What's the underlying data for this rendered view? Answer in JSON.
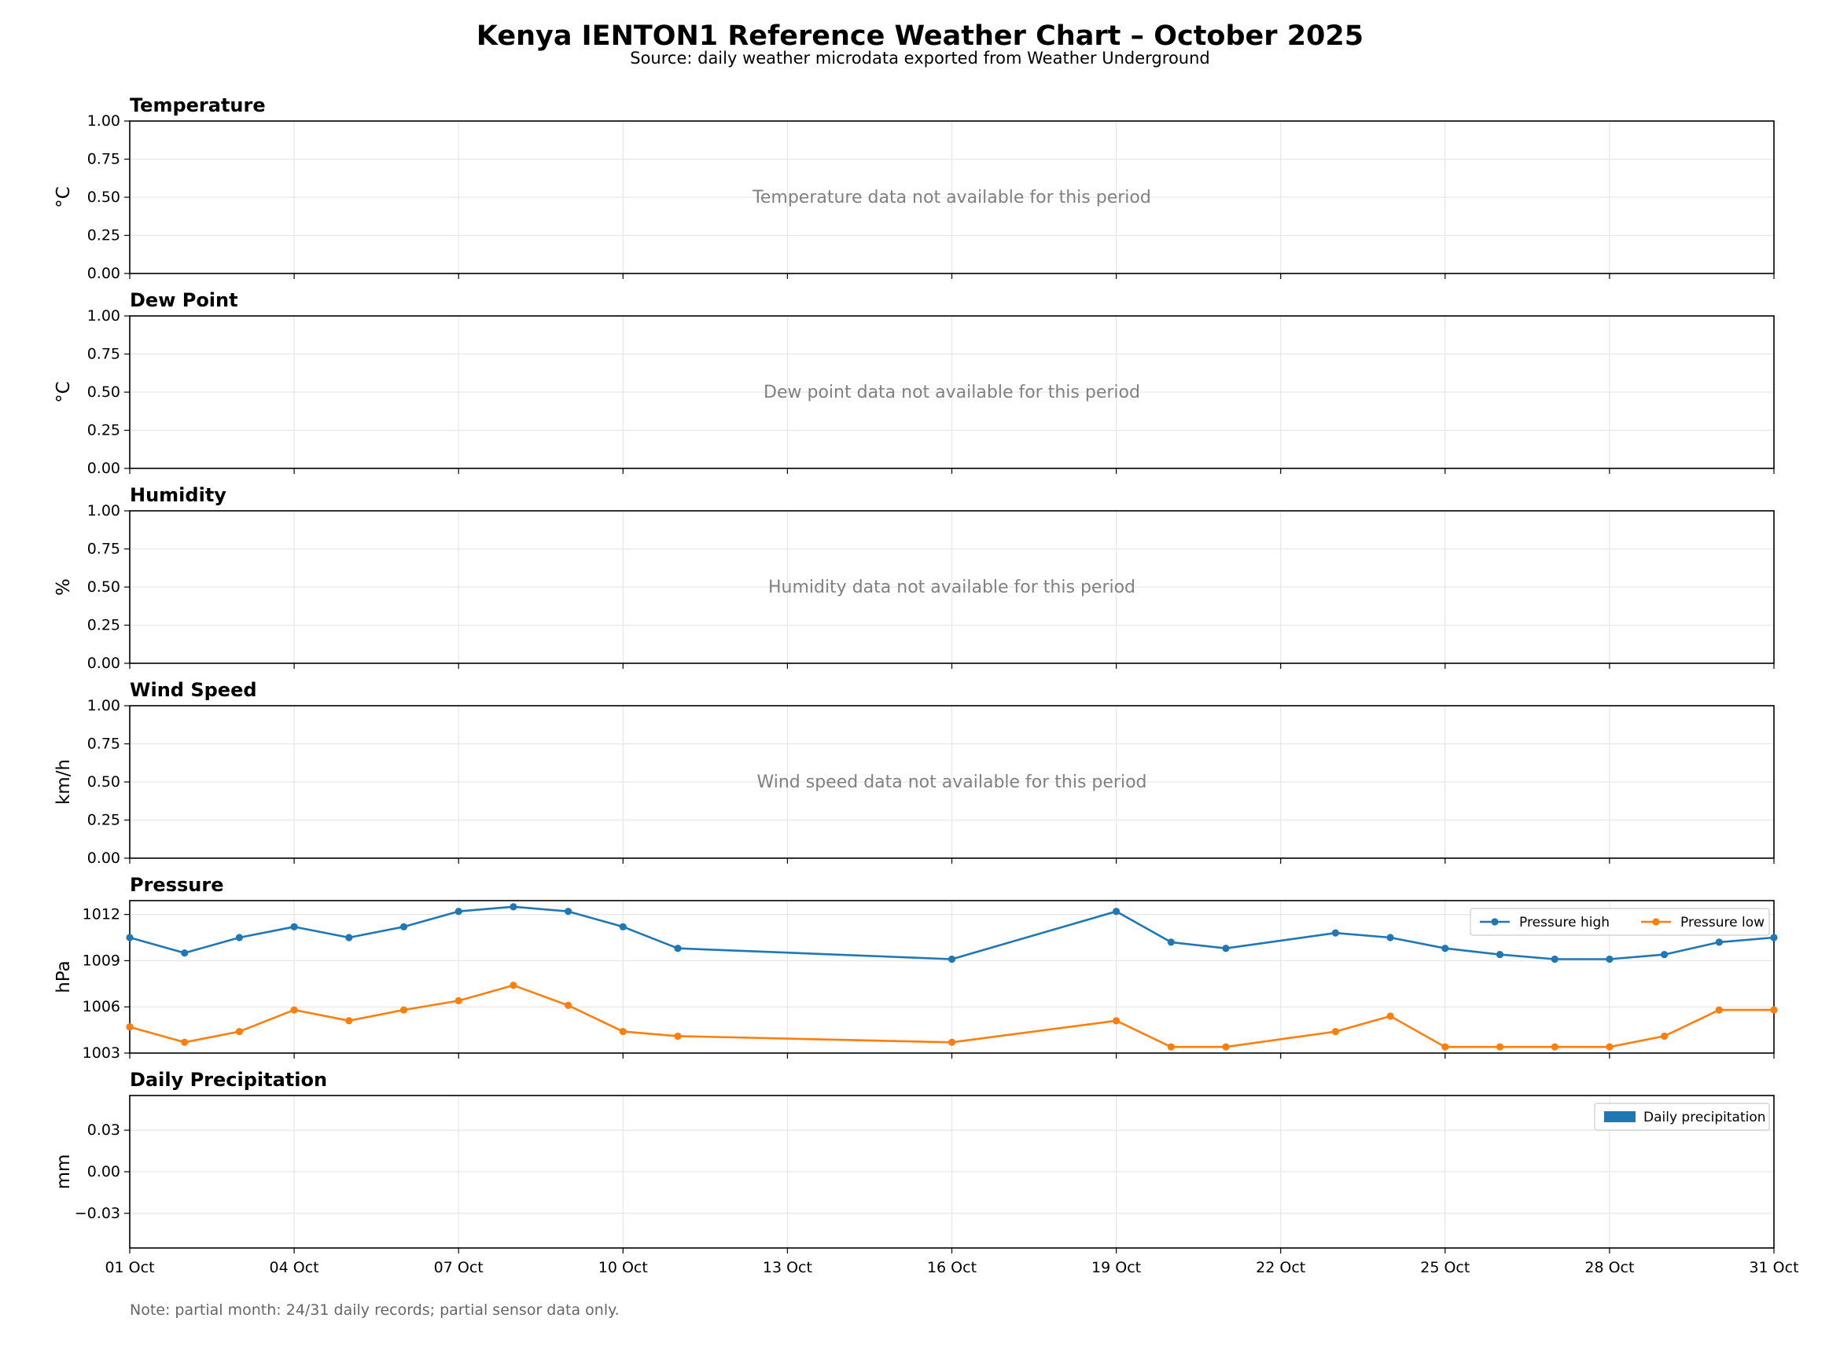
{
  "header": {
    "title": "Kenya IENTON1 Reference Weather Chart – October 2025",
    "subtitle": "Source: daily weather microdata exported from Weather Underground"
  },
  "footer": {
    "note": "Note: partial month: 24/31 daily records; partial sensor data only."
  },
  "colors": {
    "pressure_high": "#1f77b4",
    "pressure_low": "#ff7f0e",
    "precipitation": "#1f77b4",
    "no_data_text": "#808080"
  },
  "chart_data": [
    {
      "type": "line",
      "title": "Temperature",
      "ylabel": "°C",
      "ylim": [
        0,
        1
      ],
      "yticks": [
        "0.00",
        "0.25",
        "0.50",
        "0.75",
        "1.00"
      ],
      "grid": true,
      "annotation": "Temperature data not available for this period",
      "series": []
    },
    {
      "type": "line",
      "title": "Dew Point",
      "ylabel": "°C",
      "ylim": [
        0,
        1
      ],
      "yticks": [
        "0.00",
        "0.25",
        "0.50",
        "0.75",
        "1.00"
      ],
      "grid": true,
      "annotation": "Dew point data not available for this period",
      "series": []
    },
    {
      "type": "line",
      "title": "Humidity",
      "ylabel": "%",
      "ylim": [
        0,
        1
      ],
      "yticks": [
        "0.00",
        "0.25",
        "0.50",
        "0.75",
        "1.00"
      ],
      "grid": true,
      "annotation": "Humidity data not available for this period",
      "series": []
    },
    {
      "type": "line",
      "title": "Wind Speed",
      "ylabel": "km/h",
      "ylim": [
        0,
        1
      ],
      "yticks": [
        "0.00",
        "0.25",
        "0.50",
        "0.75",
        "1.00"
      ],
      "grid": true,
      "annotation": "Wind speed data not available for this period",
      "series": []
    },
    {
      "type": "line",
      "title": "Pressure",
      "ylabel": "hPa",
      "ylim": [
        1003,
        1012.9
      ],
      "yticks": [
        "1003",
        "1006",
        "1009",
        "1012"
      ],
      "grid": true,
      "legend": "top-right",
      "x": [
        1,
        2,
        3,
        4,
        5,
        6,
        7,
        8,
        9,
        10,
        11,
        16,
        19,
        20,
        21,
        23,
        24,
        25,
        26,
        27,
        28,
        29,
        30,
        31
      ],
      "series": [
        {
          "name": "Pressure high",
          "values": [
            1010.5,
            1009.5,
            1010.5,
            1011.2,
            1010.5,
            1011.2,
            1012.2,
            1012.5,
            1012.2,
            1011.2,
            1009.8,
            1009.1,
            1012.2,
            1010.2,
            1009.8,
            1010.8,
            1010.5,
            1009.8,
            1009.4,
            1009.1,
            1009.1,
            1009.4,
            1010.2,
            1010.5
          ]
        },
        {
          "name": "Pressure low",
          "values": [
            1004.7,
            1003.7,
            1004.4,
            1005.8,
            1005.1,
            1005.8,
            1006.4,
            1007.4,
            1006.1,
            1004.4,
            1004.1,
            1003.7,
            1005.1,
            1003.4,
            1003.4,
            1004.4,
            1005.4,
            1003.4,
            1003.4,
            1003.4,
            1003.4,
            1004.1,
            1005.8,
            1005.8
          ]
        }
      ]
    },
    {
      "type": "bar",
      "title": "Daily Precipitation",
      "ylabel": "mm",
      "ylim": [
        -0.055,
        0.055
      ],
      "yticks": [
        "−0.03",
        "0.00",
        "0.03"
      ],
      "grid": true,
      "legend": "top-right",
      "series": [
        {
          "name": "Daily precipitation",
          "values": []
        }
      ]
    }
  ],
  "x_axis": {
    "xlim": [
      1,
      31
    ],
    "ticks": [
      1,
      4,
      7,
      10,
      13,
      16,
      19,
      22,
      25,
      28,
      31
    ],
    "tick_labels": [
      "01 Oct",
      "04 Oct",
      "07 Oct",
      "10 Oct",
      "13 Oct",
      "16 Oct",
      "19 Oct",
      "22 Oct",
      "25 Oct",
      "28 Oct",
      "31 Oct"
    ]
  }
}
